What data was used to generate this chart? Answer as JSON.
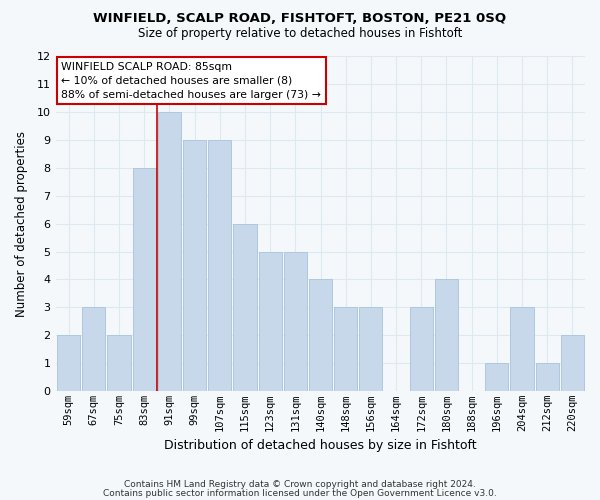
{
  "title": "WINFIELD, SCALP ROAD, FISHTOFT, BOSTON, PE21 0SQ",
  "subtitle": "Size of property relative to detached houses in Fishtoft",
  "xlabel": "Distribution of detached houses by size in Fishtoft",
  "ylabel": "Number of detached properties",
  "bar_color": "#c8d8eb",
  "bar_edge_color": "#aec8e0",
  "bins": [
    "59sqm",
    "67sqm",
    "75sqm",
    "83sqm",
    "91sqm",
    "99sqm",
    "107sqm",
    "115sqm",
    "123sqm",
    "131sqm",
    "140sqm",
    "148sqm",
    "156sqm",
    "164sqm",
    "172sqm",
    "180sqm",
    "188sqm",
    "196sqm",
    "204sqm",
    "212sqm",
    "220sqm"
  ],
  "counts": [
    2,
    3,
    2,
    8,
    10,
    9,
    9,
    6,
    5,
    5,
    4,
    3,
    3,
    0,
    3,
    4,
    0,
    1,
    3,
    1,
    2
  ],
  "vline_x": 3.5,
  "vline_color": "#cc0000",
  "ylim": [
    0,
    12
  ],
  "yticks": [
    0,
    1,
    2,
    3,
    4,
    5,
    6,
    7,
    8,
    9,
    10,
    11,
    12
  ],
  "annotation_box_text": "WINFIELD SCALP ROAD: 85sqm\n← 10% of detached houses are smaller (8)\n88% of semi-detached houses are larger (73) →",
  "footer1": "Contains HM Land Registry data © Crown copyright and database right 2024.",
  "footer2": "Contains public sector information licensed under the Open Government Licence v3.0.",
  "grid_color": "#dde8f0",
  "background_color": "#f4f8fb"
}
